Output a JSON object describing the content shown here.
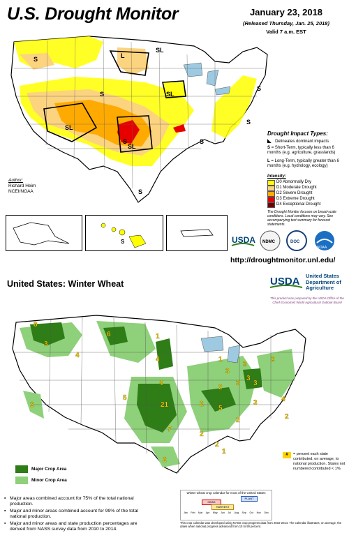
{
  "drought": {
    "title": "U.S. Drought Monitor",
    "date": "January 23, 2018",
    "released": "(Released Thursday, Jan. 25, 2018)",
    "valid": "Valid 7 a.m. EST",
    "impact_title": "Drought Impact Types:",
    "impact_items": [
      {
        "glyph": "◣",
        "text": "Delineates dominant impacts"
      },
      {
        "glyph": "S",
        "text": "= Short-Term, typically less than 6 months (e.g. agriculture, grasslands)"
      },
      {
        "glyph": "L",
        "text": "= Long-Term, typically greater than 6 months (e.g. hydrology, ecology)"
      }
    ],
    "intensity_title": "Intensity:",
    "intensity": [
      {
        "label": "D0 Abnormally Dry",
        "color": "#ffff00"
      },
      {
        "label": "D1 Moderate Drought",
        "color": "#fcd37f"
      },
      {
        "label": "D2 Severe Drought",
        "color": "#ffaa00"
      },
      {
        "label": "D3 Extreme Drought",
        "color": "#e60000"
      },
      {
        "label": "D4 Exceptional Drought",
        "color": "#730000"
      }
    ],
    "note": "The Drought Monitor focuses on broad-scale conditions. Local conditions may vary. See accompanying text summary for forecast statements.",
    "author_label": "Author:",
    "author_name": "Richard Heim",
    "author_org": "NCEI/NOAA",
    "url": "http://droughtmonitor.unl.edu/",
    "logos": [
      "USDA",
      "NDMC",
      "DOC",
      "NOAA"
    ],
    "map_labels": [
      "S",
      "L",
      "SL",
      "SL",
      "SL",
      "S",
      "SL",
      "S",
      "S",
      "S",
      "S",
      "S",
      "S",
      "S",
      "S",
      "L"
    ]
  },
  "wheat": {
    "title": "United States:  Winter Wheat",
    "usda": "USDA",
    "dept": "United States Department of Agriculture",
    "prepared": "This product was prepared by the USDA Office of the Chief Economist World Agricultural Outlook Board",
    "major_label": "Major Crop Area",
    "minor_label": "Minor Crop Area",
    "major_color": "#2e7d16",
    "minor_color": "#8fd07a",
    "pct_note": "= percent each state contributed, on average, to national production. States not numbered contributed < 1%",
    "bullets": [
      "Major areas combined account for 75% of the total national production.",
      "Major and minor areas combined account for 99% of the total national production.",
      "Major and minor areas and state production percentages are derived from NASS survey data from 2010 to 2014."
    ],
    "state_pcts": [
      "8",
      "3",
      "6",
      "4",
      "2",
      "4",
      "5",
      "21",
      "7",
      "4",
      "2",
      "2",
      "3",
      "3",
      "3",
      "4",
      "2",
      "2",
      "3",
      "2",
      "2",
      "2",
      "1",
      "3",
      "3",
      "5",
      "1",
      "2",
      "1"
    ],
    "calendar_title": "Winter wheat crop calendar for most of the United States",
    "calendar_head": "HEAD",
    "calendar_harvest": "HARVEST",
    "calendar_plant": "PLANT",
    "months": [
      "Jan",
      "Feb",
      "Mar",
      "Apr",
      "May",
      "Jun",
      "Jul",
      "Aug",
      "Sep",
      "Oct",
      "Nov",
      "Dec"
    ],
    "calendar_note": "This crop calendar was developed using NASS crop progress data from 2010-2014. The calendar illustrates, on average, the dates when national progress advanced from 10 to 90 percent."
  }
}
